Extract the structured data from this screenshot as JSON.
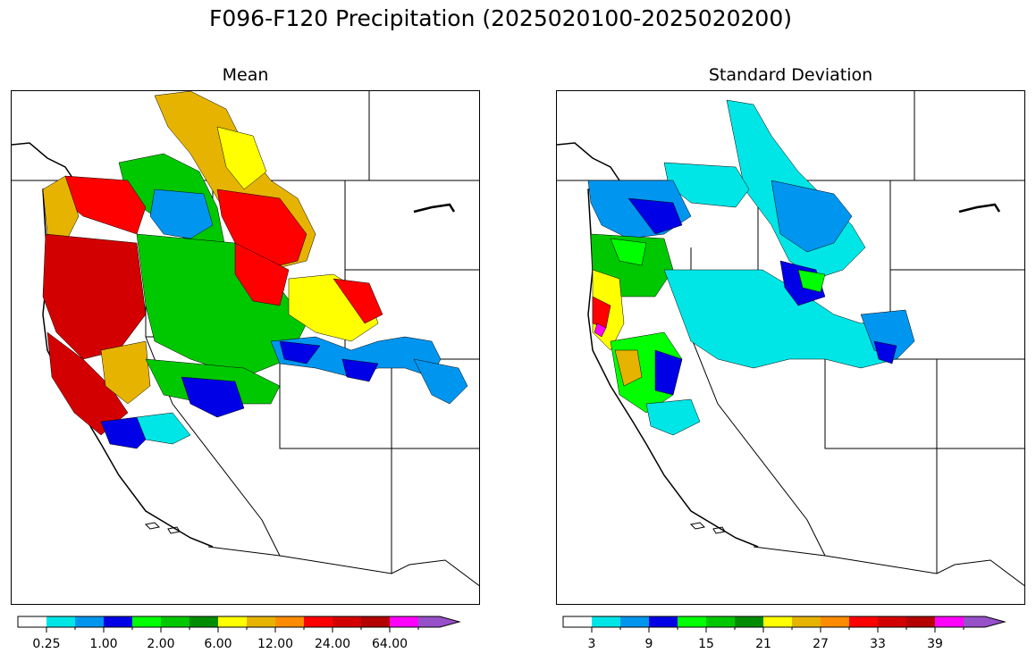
{
  "figure": {
    "title": "F096-F120 Precipitation (2025020100-2025020200)"
  },
  "panels": [
    {
      "id": "mean",
      "subtitle": "Mean",
      "colorbar": {
        "colors": [
          "#ffffff",
          "#00e6e6",
          "#0096f0",
          "#0000e6",
          "#00ff00",
          "#00c800",
          "#008c00",
          "#ffff00",
          "#e6b400",
          "#ff8c00",
          "#ff0000",
          "#d20000",
          "#b40000",
          "#ff00ff",
          "#9650c8"
        ],
        "tick_labels": [
          "0.25",
          "1.00",
          "2.00",
          "6.00",
          "12.00",
          "24.00",
          "64.00"
        ],
        "extend": "max"
      }
    },
    {
      "id": "stddev",
      "subtitle": "Standard Deviation",
      "colorbar": {
        "colors": [
          "#ffffff",
          "#00e6e6",
          "#0096f0",
          "#0000e6",
          "#00ff00",
          "#00c800",
          "#008c00",
          "#ffff00",
          "#e6b400",
          "#ff8c00",
          "#ff0000",
          "#d20000",
          "#b40000",
          "#ff00ff",
          "#9650c8"
        ],
        "tick_labels": [
          "3",
          "9",
          "15",
          "21",
          "27",
          "33",
          "39"
        ],
        "extend": "max"
      }
    }
  ]
}
